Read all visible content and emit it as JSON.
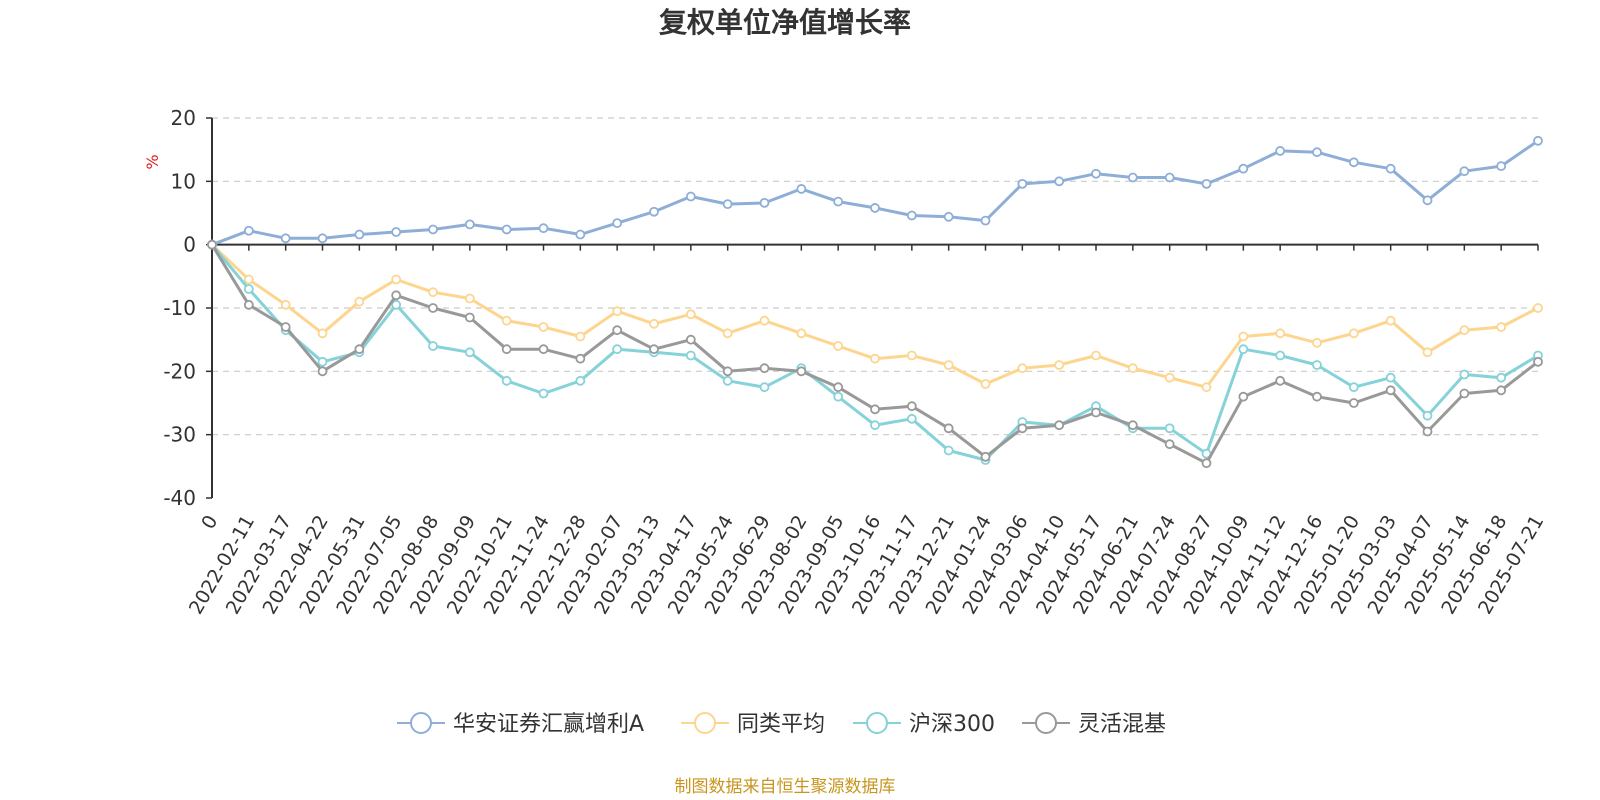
{
  "chart_data": {
    "type": "line",
    "title": "复权单位净值增长率",
    "ylabel": "%",
    "ylim": [
      -40,
      20
    ],
    "yticks": [
      -40,
      -30,
      -20,
      -10,
      0,
      10,
      20
    ],
    "grid": true,
    "legend_position": "bottom-center",
    "source": "制图数据来自恒生聚源数据库",
    "x_labels": [
      "0",
      "2022-02-11",
      "2022-03-17",
      "2022-04-22",
      "2022-05-31",
      "2022-07-05",
      "2022-08-08",
      "2022-09-09",
      "2022-10-21",
      "2022-11-24",
      "2022-12-28",
      "2023-02-07",
      "2023-03-13",
      "2023-04-17",
      "2023-05-24",
      "2023-06-29",
      "2023-08-02",
      "2023-09-05",
      "2023-10-16",
      "2023-11-17",
      "2023-12-21",
      "2024-01-24",
      "2024-03-06",
      "2024-04-10",
      "2024-05-17",
      "2024-06-21",
      "2024-07-24",
      "2024-08-27",
      "2024-10-09",
      "2024-11-12",
      "2024-12-16",
      "2025-01-20",
      "2025-03-03",
      "2025-04-07",
      "2025-05-14",
      "2025-06-18",
      "2025-07-21"
    ],
    "series": [
      {
        "name": "华安证券汇赢增利A",
        "color": "#8eaed8",
        "values": [
          0,
          2.2,
          1.0,
          1.0,
          1.6,
          2.0,
          2.4,
          3.2,
          2.4,
          2.6,
          1.6,
          3.4,
          5.2,
          7.6,
          6.4,
          6.6,
          8.8,
          6.8,
          5.8,
          4.6,
          4.4,
          3.8,
          9.6,
          10.0,
          11.2,
          10.6,
          10.6,
          9.6,
          12.0,
          14.8,
          14.6,
          13.0,
          12.0,
          7.0,
          11.6,
          12.4,
          16.4
        ]
      },
      {
        "name": "同类平均",
        "color": "#fdd58e",
        "values": [
          0,
          -5.5,
          -9.5,
          -14.0,
          -9.0,
          -5.5,
          -7.5,
          -8.5,
          -12.0,
          -13.0,
          -14.5,
          -10.5,
          -12.5,
          -11.0,
          -14.0,
          -12.0,
          -14.0,
          -16.0,
          -18.0,
          -17.5,
          -19.0,
          -22.0,
          -19.5,
          -19.0,
          -17.5,
          -19.5,
          -21.0,
          -22.5,
          -14.5,
          -14.0,
          -15.5,
          -14.0,
          -12.0,
          -17.0,
          -13.5,
          -13.0,
          -10.0
        ]
      },
      {
        "name": "沪深300",
        "color": "#85d2d9",
        "values": [
          0,
          -7.0,
          -13.5,
          -18.5,
          -17.0,
          -9.5,
          -16.0,
          -17.0,
          -21.5,
          -23.5,
          -21.5,
          -16.5,
          -17.0,
          -17.5,
          -21.5,
          -22.5,
          -19.5,
          -24.0,
          -28.5,
          -27.5,
          -32.5,
          -34.0,
          -28.0,
          -28.5,
          -25.5,
          -29.0,
          -29.0,
          -33.0,
          -16.5,
          -17.5,
          -19.0,
          -22.5,
          -21.0,
          -27.0,
          -20.5,
          -21.0,
          -17.5
        ]
      },
      {
        "name": "灵活混基",
        "color": "#999999",
        "values": [
          0,
          -9.5,
          -13.0,
          -20.0,
          -16.5,
          -8.0,
          -10.0,
          -11.5,
          -16.5,
          -16.5,
          -18.0,
          -13.5,
          -16.5,
          -15.0,
          -20.0,
          -19.5,
          -20.0,
          -22.5,
          -26.0,
          -25.5,
          -29.0,
          -33.5,
          -29.0,
          -28.5,
          -26.5,
          -28.5,
          -31.5,
          -34.5,
          -24.0,
          -21.5,
          -24.0,
          -25.0,
          -23.0,
          -29.5,
          -23.5,
          -23.0,
          -18.5
        ]
      }
    ]
  }
}
